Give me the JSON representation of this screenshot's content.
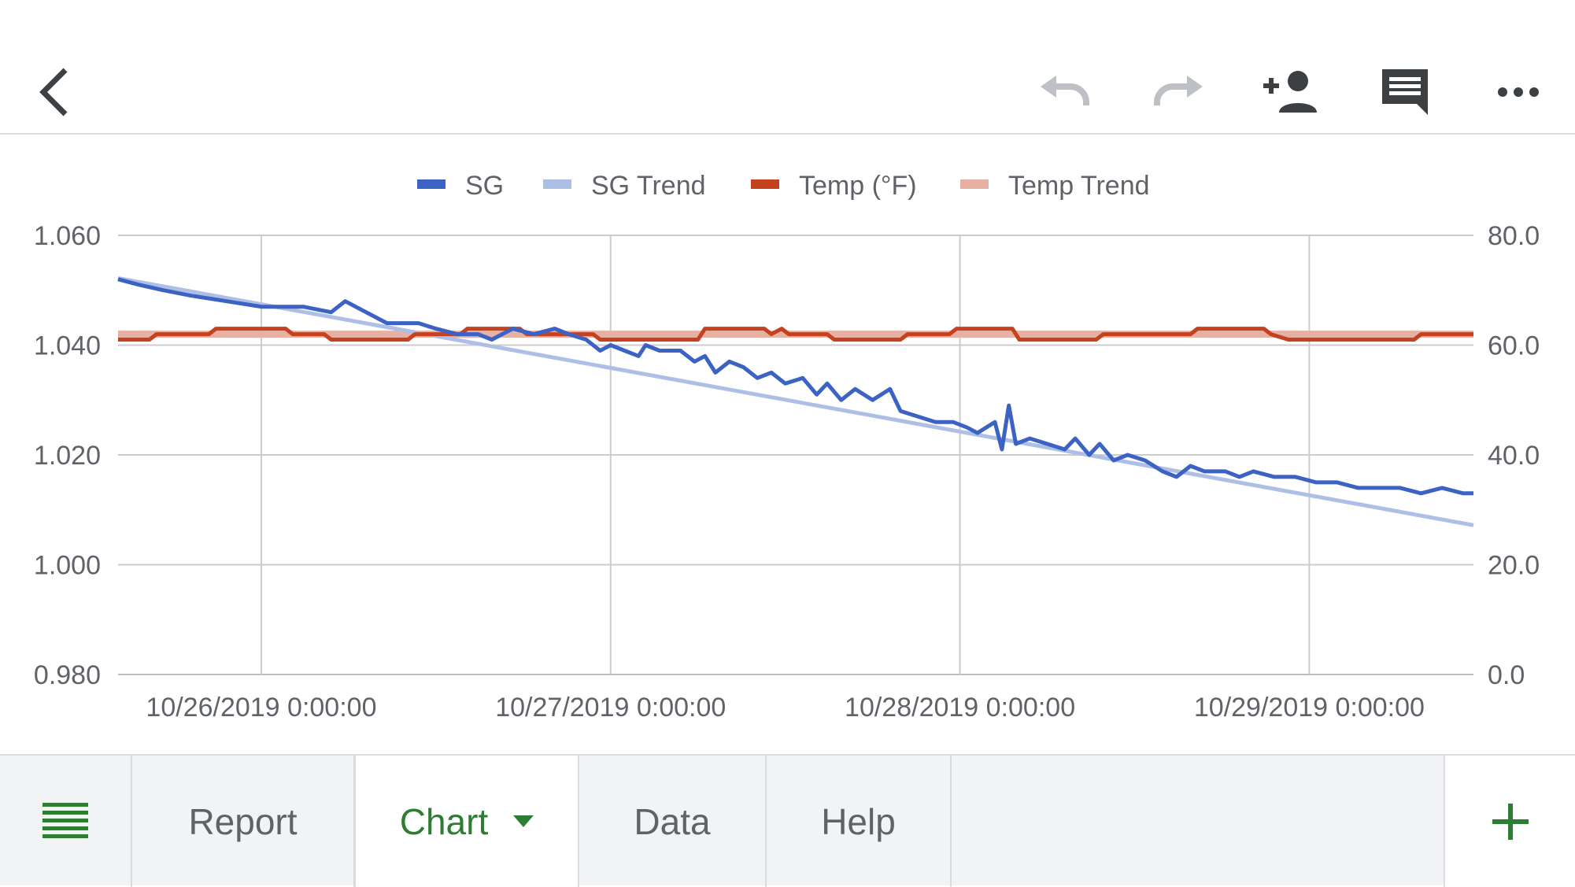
{
  "toolbar": {
    "icons": [
      "back-icon",
      "undo-icon",
      "redo-icon",
      "add-person-icon",
      "comment-icon",
      "more-icon"
    ]
  },
  "chart_data": {
    "type": "line",
    "legend_position": "top",
    "legend": [
      "SG",
      "SG Trend",
      "Temp (°F)",
      "Temp Trend"
    ],
    "colors": {
      "SG": "#3c63c4",
      "SG Trend": "#aebfe6",
      "Temp": "#c4421f",
      "Temp Trend": "#e6b0a3"
    },
    "x_ticks": [
      "10/26/2019 0:00:00",
      "10/27/2019 0:00:00",
      "10/28/2019 0:00:00",
      "10/29/2019 0:00:00"
    ],
    "x_range_days": [
      25.59,
      29.47
    ],
    "y_left": {
      "min": 0.98,
      "max": 1.06,
      "ticks": [
        "0.980",
        "1.000",
        "1.020",
        "1.040",
        "1.060"
      ]
    },
    "y_right": {
      "min": 0,
      "max": 80,
      "ticks": [
        "0.0",
        "20.0",
        "40.0",
        "60.0",
        "80.0"
      ]
    },
    "grid": true,
    "series": [
      {
        "name": "SG",
        "axis": "left",
        "points": [
          [
            25.59,
            1.052
          ],
          [
            25.65,
            1.051
          ],
          [
            25.72,
            1.05
          ],
          [
            25.8,
            1.049
          ],
          [
            25.9,
            1.048
          ],
          [
            26.0,
            1.047
          ],
          [
            26.12,
            1.047
          ],
          [
            26.2,
            1.046
          ],
          [
            26.24,
            1.048
          ],
          [
            26.3,
            1.046
          ],
          [
            26.36,
            1.044
          ],
          [
            26.45,
            1.044
          ],
          [
            26.5,
            1.043
          ],
          [
            26.56,
            1.042
          ],
          [
            26.62,
            1.042
          ],
          [
            26.66,
            1.041
          ],
          [
            26.72,
            1.043
          ],
          [
            26.78,
            1.042
          ],
          [
            26.84,
            1.043
          ],
          [
            26.88,
            1.042
          ],
          [
            26.93,
            1.041
          ],
          [
            26.97,
            1.039
          ],
          [
            27.0,
            1.04
          ],
          [
            27.04,
            1.039
          ],
          [
            27.08,
            1.038
          ],
          [
            27.1,
            1.04
          ],
          [
            27.14,
            1.039
          ],
          [
            27.2,
            1.039
          ],
          [
            27.24,
            1.037
          ],
          [
            27.27,
            1.038
          ],
          [
            27.3,
            1.035
          ],
          [
            27.34,
            1.037
          ],
          [
            27.38,
            1.036
          ],
          [
            27.42,
            1.034
          ],
          [
            27.46,
            1.035
          ],
          [
            27.5,
            1.033
          ],
          [
            27.55,
            1.034
          ],
          [
            27.59,
            1.031
          ],
          [
            27.62,
            1.033
          ],
          [
            27.66,
            1.03
          ],
          [
            27.7,
            1.032
          ],
          [
            27.75,
            1.03
          ],
          [
            27.8,
            1.032
          ],
          [
            27.83,
            1.028
          ],
          [
            27.88,
            1.027
          ],
          [
            27.93,
            1.026
          ],
          [
            27.98,
            1.026
          ],
          [
            28.02,
            1.025
          ],
          [
            28.05,
            1.024
          ],
          [
            28.1,
            1.026
          ],
          [
            28.12,
            1.021
          ],
          [
            28.14,
            1.029
          ],
          [
            28.16,
            1.022
          ],
          [
            28.2,
            1.023
          ],
          [
            28.25,
            1.022
          ],
          [
            28.3,
            1.021
          ],
          [
            28.33,
            1.023
          ],
          [
            28.37,
            1.02
          ],
          [
            28.4,
            1.022
          ],
          [
            28.44,
            1.019
          ],
          [
            28.48,
            1.02
          ],
          [
            28.53,
            1.019
          ],
          [
            28.58,
            1.017
          ],
          [
            28.62,
            1.016
          ],
          [
            28.66,
            1.018
          ],
          [
            28.7,
            1.017
          ],
          [
            28.76,
            1.017
          ],
          [
            28.8,
            1.016
          ],
          [
            28.84,
            1.017
          ],
          [
            28.9,
            1.016
          ],
          [
            28.96,
            1.016
          ],
          [
            29.02,
            1.015
          ],
          [
            29.08,
            1.015
          ],
          [
            29.14,
            1.014
          ],
          [
            29.2,
            1.014
          ],
          [
            29.26,
            1.014
          ],
          [
            29.32,
            1.013
          ],
          [
            29.38,
            1.014
          ],
          [
            29.44,
            1.013
          ],
          [
            29.47,
            1.013
          ]
        ]
      },
      {
        "name": "SG Trend",
        "axis": "left",
        "points": [
          [
            25.59,
            1.0522
          ],
          [
            29.47,
            1.0072
          ]
        ]
      },
      {
        "name": "Temp (°F)",
        "axis": "right",
        "points": [
          [
            25.59,
            61
          ],
          [
            25.68,
            61
          ],
          [
            25.7,
            62
          ],
          [
            25.85,
            62
          ],
          [
            25.87,
            63
          ],
          [
            26.07,
            63
          ],
          [
            26.09,
            62
          ],
          [
            26.18,
            62
          ],
          [
            26.2,
            61
          ],
          [
            26.42,
            61
          ],
          [
            26.44,
            62
          ],
          [
            26.57,
            62
          ],
          [
            26.59,
            63
          ],
          [
            26.74,
            63
          ],
          [
            26.76,
            62
          ],
          [
            26.95,
            62
          ],
          [
            26.97,
            61
          ],
          [
            27.25,
            61
          ],
          [
            27.27,
            63
          ],
          [
            27.44,
            63
          ],
          [
            27.46,
            62
          ],
          [
            27.49,
            63
          ],
          [
            27.51,
            62
          ],
          [
            27.62,
            62
          ],
          [
            27.64,
            61
          ],
          [
            27.83,
            61
          ],
          [
            27.85,
            62
          ],
          [
            27.97,
            62
          ],
          [
            27.99,
            63
          ],
          [
            28.15,
            63
          ],
          [
            28.17,
            61
          ],
          [
            28.39,
            61
          ],
          [
            28.41,
            62
          ],
          [
            28.66,
            62
          ],
          [
            28.68,
            63
          ],
          [
            28.87,
            63
          ],
          [
            28.89,
            62
          ],
          [
            28.94,
            61
          ],
          [
            29.3,
            61
          ],
          [
            29.32,
            62
          ],
          [
            29.47,
            62
          ]
        ]
      },
      {
        "name": "Temp Trend",
        "axis": "right",
        "points": [
          [
            25.59,
            62
          ],
          [
            29.47,
            62
          ]
        ]
      }
    ]
  },
  "sheets": {
    "menu_icon": "all-sheets-icon",
    "tabs": [
      {
        "label": "Report",
        "active": false
      },
      {
        "label": "Chart",
        "active": true
      },
      {
        "label": "Data",
        "active": false
      },
      {
        "label": "Help",
        "active": false
      }
    ],
    "add_icon": "add-sheet-icon"
  }
}
